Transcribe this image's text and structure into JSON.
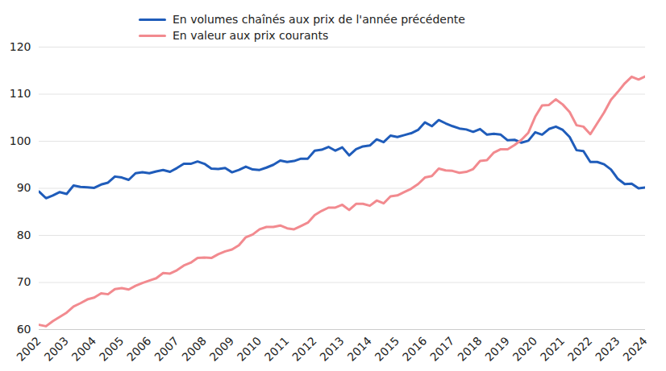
{
  "chart_data": {
    "type": "line",
    "x": [
      2002,
      2002.25,
      2002.5,
      2002.75,
      2003,
      2003.25,
      2003.5,
      2003.75,
      2004,
      2004.25,
      2004.5,
      2004.75,
      2005,
      2005.25,
      2005.5,
      2005.75,
      2006,
      2006.25,
      2006.5,
      2006.75,
      2007,
      2007.25,
      2007.5,
      2007.75,
      2008,
      2008.25,
      2008.5,
      2008.75,
      2009,
      2009.25,
      2009.5,
      2009.75,
      2010,
      2010.25,
      2010.5,
      2010.75,
      2011,
      2011.25,
      2011.5,
      2011.75,
      2012,
      2012.25,
      2012.5,
      2012.75,
      2013,
      2013.25,
      2013.5,
      2013.75,
      2014,
      2014.25,
      2014.5,
      2014.75,
      2015,
      2015.25,
      2015.5,
      2015.75,
      2016,
      2016.25,
      2016.5,
      2016.75,
      2017,
      2017.25,
      2017.5,
      2017.75,
      2018,
      2018.25,
      2018.5,
      2018.75,
      2019,
      2019.25,
      2019.5,
      2019.75,
      2020,
      2020.25,
      2020.5,
      2020.75,
      2021,
      2021.25,
      2021.5,
      2021.75,
      2022,
      2022.25,
      2022.5,
      2022.75,
      2023,
      2023.25,
      2023.5,
      2023.75,
      2024
    ],
    "series": [
      {
        "name": "En volumes chaînés aux prix de l'année précédente",
        "color": "#1f5cba",
        "values": [
          89.3,
          87.9,
          88.5,
          89.2,
          88.8,
          90.6,
          90.3,
          90.2,
          90.1,
          90.8,
          91.2,
          92.5,
          92.3,
          91.8,
          93.2,
          93.4,
          93.2,
          93.6,
          93.9,
          93.5,
          94.3,
          95.2,
          95.2,
          95.7,
          95.2,
          94.2,
          94.1,
          94.3,
          93.4,
          93.9,
          94.6,
          94.0,
          93.9,
          94.4,
          95.0,
          95.9,
          95.6,
          95.8,
          96.3,
          96.3,
          98.0,
          98.2,
          98.8,
          98.0,
          98.7,
          97.0,
          98.3,
          98.9,
          99.1,
          100.4,
          99.8,
          101.2,
          100.9,
          101.3,
          101.7,
          102.4,
          104.0,
          103.2,
          104.5,
          103.8,
          103.2,
          102.7,
          102.5,
          102.0,
          102.6,
          101.4,
          101.6,
          101.4,
          100.2,
          100.3,
          99.7,
          100.1,
          101.9,
          101.4,
          102.6,
          103.1,
          102.4,
          100.9,
          98.1,
          97.9,
          95.6,
          95.6,
          95.1,
          94.0,
          92.0,
          90.9,
          91.0,
          90.0,
          90.2
        ]
      },
      {
        "name": "En valeur aux prix courants",
        "color": "#f28a8f",
        "values": [
          61.0,
          60.7,
          61.8,
          62.7,
          63.6,
          64.9,
          65.6,
          66.4,
          66.8,
          67.7,
          67.5,
          68.6,
          68.8,
          68.5,
          69.3,
          69.9,
          70.4,
          70.9,
          72.0,
          71.9,
          72.6,
          73.6,
          74.2,
          75.2,
          75.3,
          75.2,
          76.0,
          76.6,
          77.0,
          77.9,
          79.6,
          80.2,
          81.3,
          81.8,
          81.8,
          82.1,
          81.5,
          81.3,
          82.0,
          82.7,
          84.3,
          85.2,
          85.9,
          85.9,
          86.5,
          85.4,
          86.7,
          86.7,
          86.3,
          87.4,
          86.8,
          88.3,
          88.5,
          89.2,
          89.9,
          90.9,
          92.3,
          92.6,
          94.2,
          93.8,
          93.7,
          93.3,
          93.5,
          94.1,
          95.8,
          96.0,
          97.6,
          98.3,
          98.3,
          99.2,
          100.3,
          101.8,
          105.2,
          107.6,
          107.7,
          108.9,
          107.8,
          106.2,
          103.4,
          103.1,
          101.5,
          103.8,
          106.1,
          108.8,
          110.5,
          112.3,
          113.7,
          113.1,
          113.8
        ]
      }
    ],
    "xlim": [
      2002,
      2024
    ],
    "xticks": [
      2002,
      2003,
      2004,
      2005,
      2006,
      2007,
      2008,
      2009,
      2010,
      2011,
      2012,
      2013,
      2014,
      2015,
      2016,
      2017,
      2018,
      2019,
      2020,
      2021,
      2022,
      2023,
      2024
    ],
    "ylim": [
      60,
      120
    ],
    "yticks": [
      60,
      70,
      80,
      90,
      100,
      110,
      120
    ],
    "grid": true,
    "legend": "top"
  }
}
